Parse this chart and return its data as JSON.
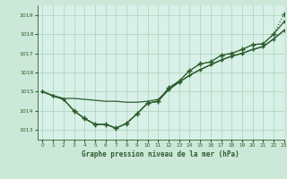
{
  "title": "Graphe pression niveau de la mer (hPa)",
  "background_color": "#cce8d8",
  "plot_bg_color": "#d8f0e8",
  "grid_color": "#b0d8c0",
  "line_color": "#2d5e2d",
  "xlim": [
    -0.5,
    23
  ],
  "ylim": [
    1012.5,
    1019.5
  ],
  "yticks": [
    1013,
    1014,
    1015,
    1016,
    1017,
    1018,
    1019
  ],
  "xticks": [
    0,
    1,
    2,
    3,
    4,
    5,
    6,
    7,
    8,
    9,
    10,
    11,
    12,
    13,
    14,
    15,
    16,
    17,
    18,
    19,
    20,
    21,
    22,
    23
  ],
  "s1_x": [
    0,
    1,
    2,
    3,
    4,
    5,
    6,
    7,
    8,
    9,
    10,
    11,
    12,
    13,
    14,
    15,
    16,
    17,
    18,
    19,
    20,
    21,
    22,
    23
  ],
  "s1_y": [
    1015.0,
    1014.8,
    1014.65,
    1014.65,
    1014.6,
    1014.55,
    1014.5,
    1014.5,
    1014.45,
    1014.45,
    1014.5,
    1014.6,
    1015.1,
    1015.5,
    1015.85,
    1016.15,
    1016.4,
    1016.65,
    1016.85,
    1017.0,
    1017.2,
    1017.35,
    1017.75,
    1018.2
  ],
  "s2_x": [
    0,
    1,
    2,
    3,
    4,
    5,
    6,
    7,
    8,
    9,
    10,
    11,
    12,
    13,
    14,
    15,
    16,
    17,
    18,
    19,
    20,
    21,
    22,
    23
  ],
  "s2_y": [
    1015.0,
    1014.78,
    1014.6,
    1014.0,
    1013.6,
    1013.3,
    1013.3,
    1013.1,
    1013.35,
    1013.85,
    1014.4,
    1014.5,
    1015.1,
    1015.5,
    1015.85,
    1016.15,
    1016.4,
    1016.65,
    1016.85,
    1017.0,
    1017.2,
    1017.35,
    1017.75,
    1018.2
  ],
  "s3_x": [
    0,
    1,
    2,
    3,
    4,
    5,
    6,
    7,
    8,
    9,
    10,
    11,
    12,
    13,
    14,
    15,
    16,
    17,
    18,
    19,
    20,
    21,
    22,
    23
  ],
  "s3_y": [
    1015.0,
    1014.78,
    1014.6,
    1014.0,
    1013.6,
    1013.3,
    1013.3,
    1013.1,
    1013.35,
    1013.85,
    1014.4,
    1014.5,
    1015.2,
    1015.55,
    1016.1,
    1016.45,
    1016.55,
    1016.9,
    1017.0,
    1017.2,
    1017.45,
    1017.5,
    1018.0,
    1018.65
  ],
  "s4_x": [
    3,
    4,
    5,
    6,
    7,
    8,
    9,
    10,
    11,
    12,
    13,
    14,
    15,
    16,
    17,
    18,
    19,
    20,
    21,
    22,
    23
  ],
  "s4_y": [
    1014.0,
    1013.6,
    1013.3,
    1013.3,
    1013.1,
    1013.35,
    1013.85,
    1014.4,
    1014.5,
    1015.2,
    1015.55,
    1016.1,
    1016.45,
    1016.55,
    1016.9,
    1017.0,
    1017.2,
    1017.45,
    1017.5,
    1018.0,
    1019.05
  ]
}
